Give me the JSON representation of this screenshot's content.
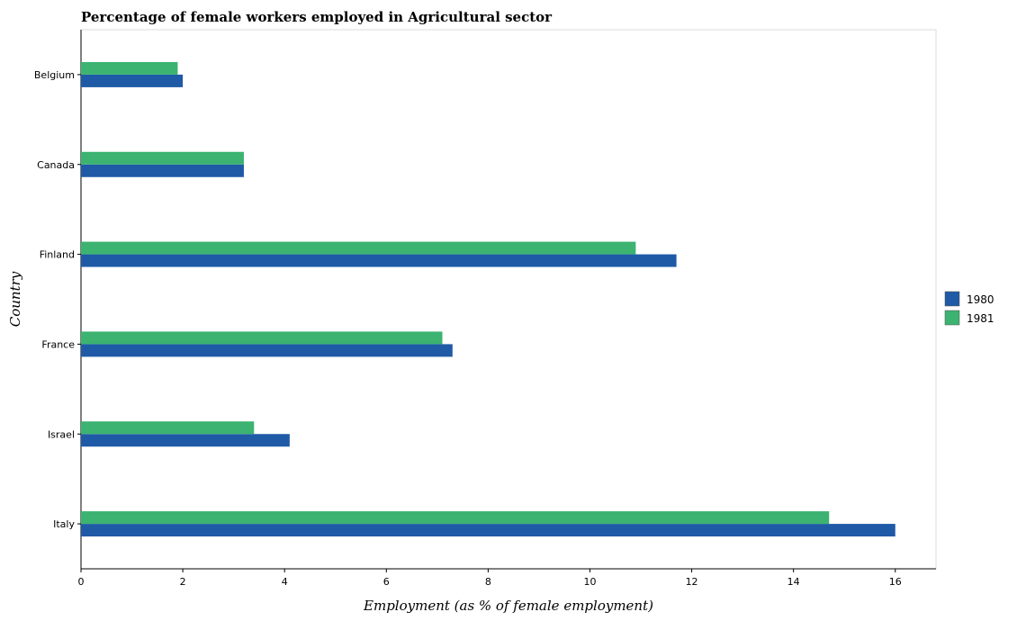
{
  "chart_data": {
    "type": "bar",
    "orientation": "horizontal",
    "title": "Percentage of female workers employed in Agricultural sector",
    "xlabel": "Employment (as % of female employment)",
    "ylabel": "Country",
    "categories": [
      "Belgium",
      "Canada",
      "Finland",
      "France",
      "Israel",
      "Italy"
    ],
    "series": [
      {
        "name": "1980",
        "color": "#1f5aa6",
        "values": [
          2.0,
          3.2,
          11.7,
          7.3,
          4.1,
          16.0
        ]
      },
      {
        "name": "1981",
        "color": "#3cb371",
        "values": [
          1.9,
          3.2,
          10.9,
          7.1,
          3.4,
          14.7
        ]
      }
    ],
    "xlim": [
      0,
      16.8
    ],
    "xticks": [
      0,
      2,
      4,
      6,
      8,
      10,
      12,
      14,
      16
    ],
    "xtick_labels": [
      "0",
      "2",
      "4",
      "6",
      "8",
      "10",
      "12",
      "14",
      "16"
    ],
    "grid": false,
    "legend_position": "right"
  }
}
